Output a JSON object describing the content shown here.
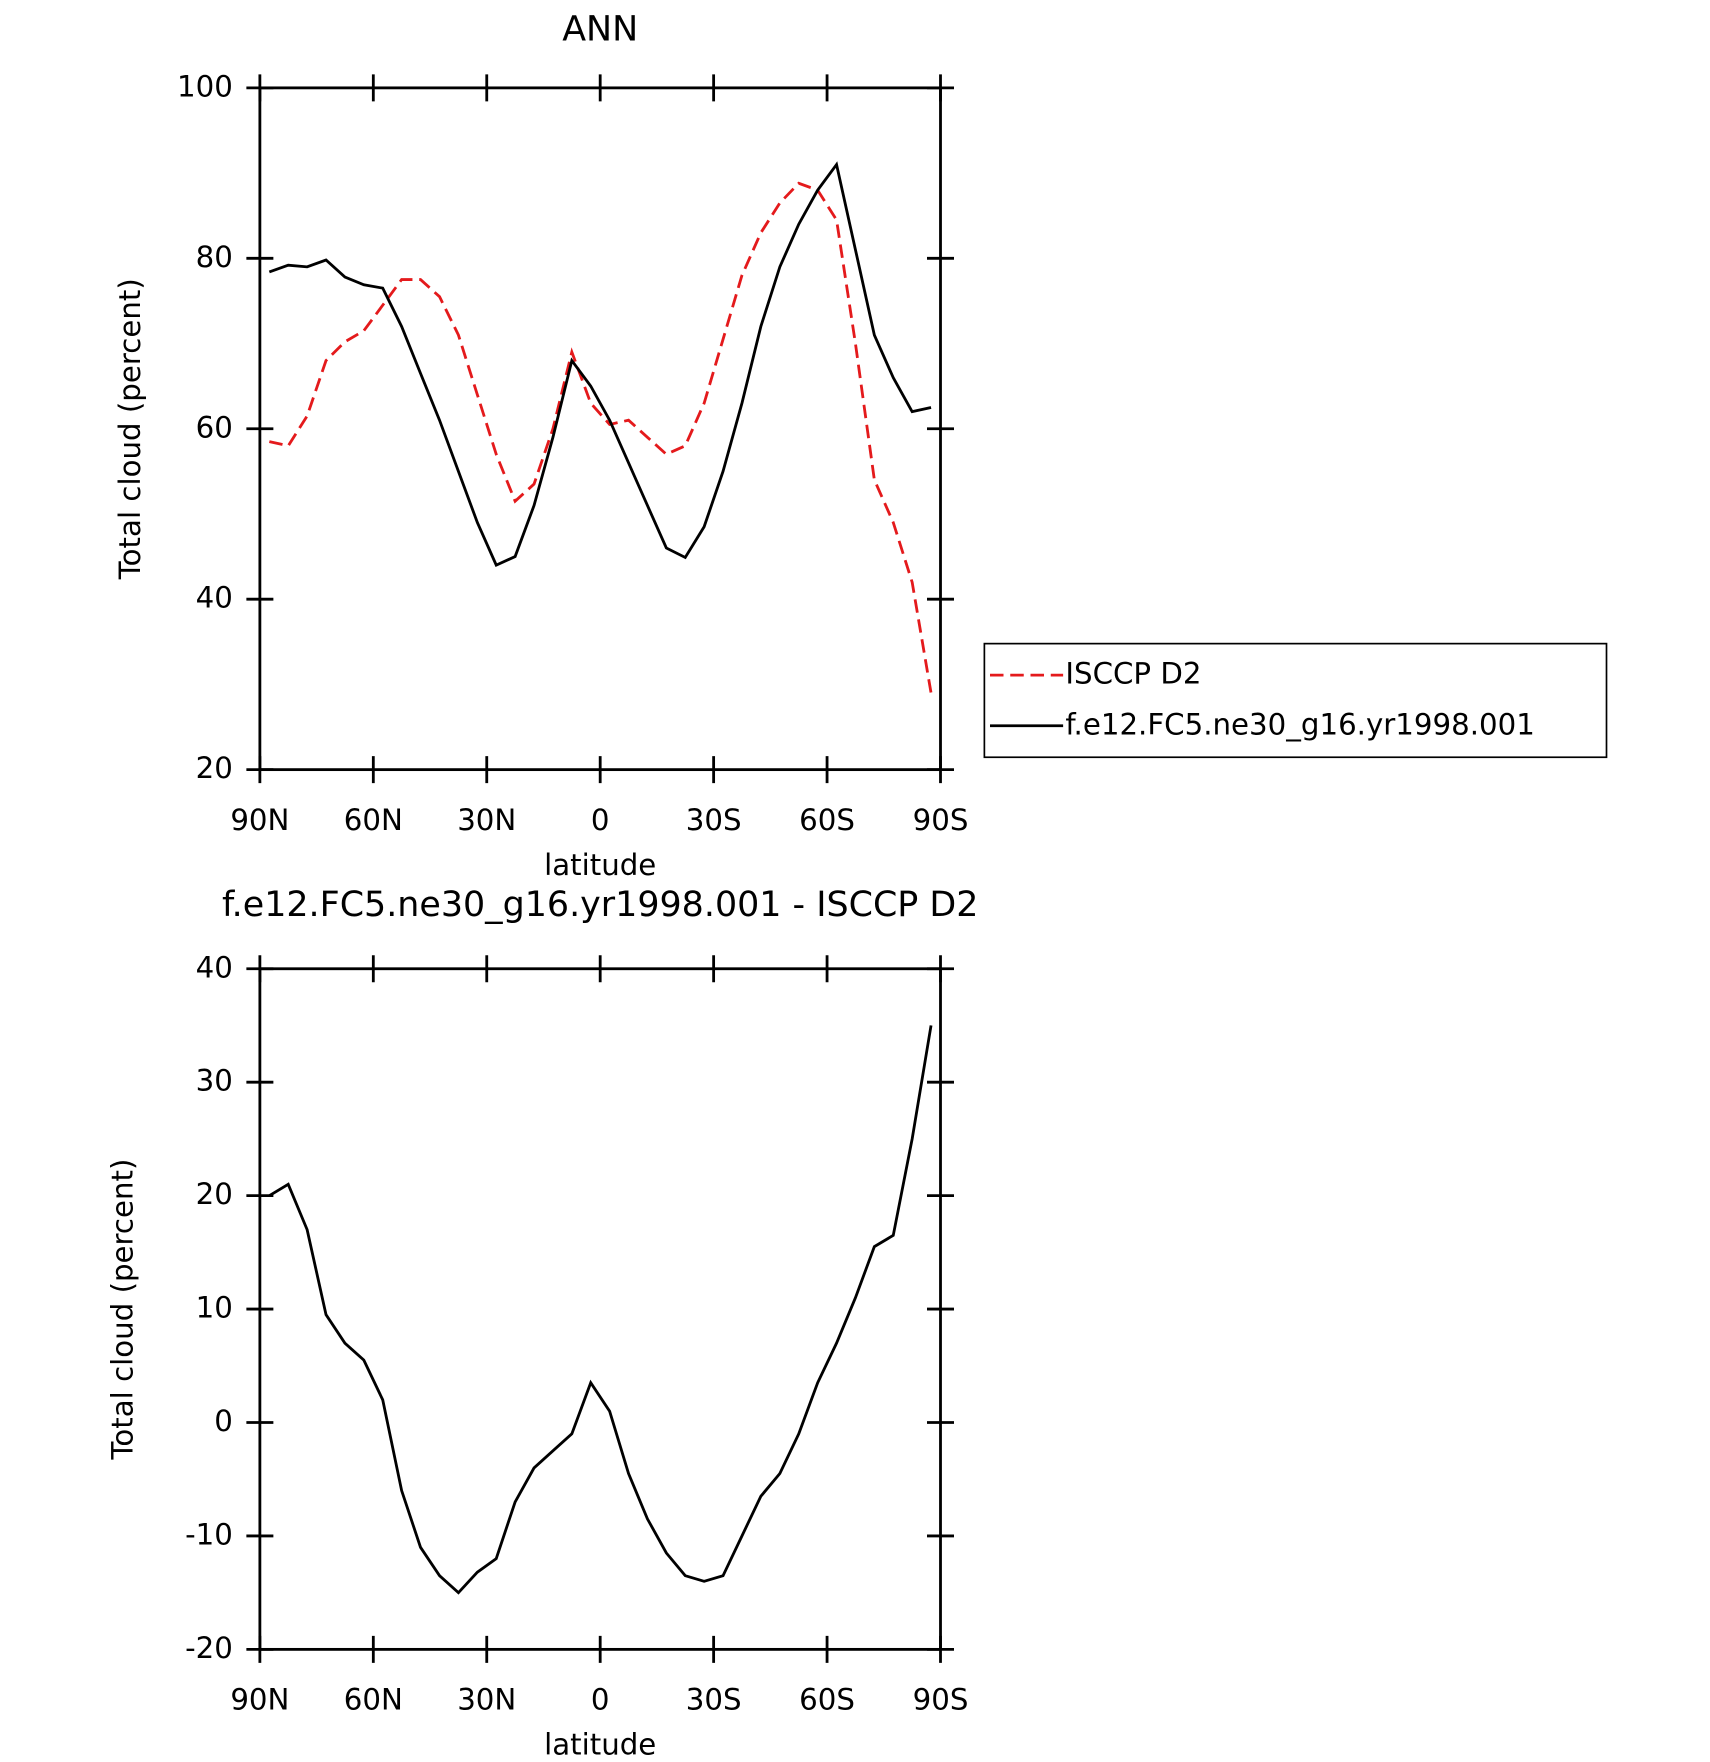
{
  "chart_data": [
    {
      "type": "line",
      "title": "ANN",
      "xlabel": "latitude",
      "ylabel": "Total cloud (percent)",
      "x": [
        87.5,
        82.5,
        77.5,
        72.5,
        67.5,
        62.5,
        57.5,
        52.5,
        47.5,
        42.5,
        37.5,
        32.5,
        27.5,
        22.5,
        17.5,
        12.5,
        7.5,
        2.5,
        -2.5,
        -7.5,
        -12.5,
        -17.5,
        -22.5,
        -27.5,
        -32.5,
        -37.5,
        -42.5,
        -47.5,
        -52.5,
        -57.5,
        -62.5,
        -67.5,
        -72.5,
        -77.5,
        -82.5,
        -87.5
      ],
      "series": [
        {
          "name": "ISCCP D2",
          "color": "#e41a1c",
          "dashed": true,
          "values": [
            58.5,
            58,
            61.5,
            68,
            70.2,
            71.5,
            74.5,
            77.5,
            77.5,
            75.5,
            71,
            64,
            57,
            51.5,
            53.5,
            60,
            69,
            63,
            60.5,
            61,
            59,
            57,
            58,
            63,
            70.5,
            78,
            83,
            86.5,
            88.8,
            88,
            84.5,
            70,
            54,
            49,
            42,
            29
          ]
        },
        {
          "name": "f.e12.FC5.ne30_g16.yr1998.001",
          "color": "#000000",
          "dashed": false,
          "values": [
            78.4,
            79.2,
            79,
            79.8,
            77.8,
            76.9,
            76.5,
            72,
            66.5,
            61,
            55,
            49,
            44,
            45,
            51,
            59,
            68,
            65,
            61,
            56,
            51,
            46,
            44.9,
            48.5,
            55,
            63,
            72,
            79,
            84,
            88,
            91,
            81,
            71,
            66,
            62,
            62.5
          ]
        }
      ],
      "xlim": [
        90,
        -90
      ],
      "xticks": [
        {
          "value": 90,
          "label": "90N"
        },
        {
          "value": 60,
          "label": "60N"
        },
        {
          "value": 30,
          "label": "30N"
        },
        0,
        {
          "value": -30,
          "label": "30S"
        },
        {
          "value": -60,
          "label": "60S"
        },
        {
          "value": -90,
          "label": "90S"
        }
      ],
      "ylim": [
        20,
        100
      ],
      "yticks": [
        20,
        40,
        60,
        80,
        100
      ],
      "legend": "right"
    },
    {
      "type": "line",
      "title": "f.e12.FC5.ne30_g16.yr1998.001 - ISCCP D2",
      "xlabel": "latitude",
      "ylabel": "Total cloud (percent)",
      "x": [
        87.5,
        82.5,
        77.5,
        72.5,
        67.5,
        62.5,
        57.5,
        52.5,
        47.5,
        42.5,
        37.5,
        32.5,
        27.5,
        22.5,
        17.5,
        12.5,
        7.5,
        2.5,
        -2.5,
        -7.5,
        -12.5,
        -17.5,
        -22.5,
        -27.5,
        -32.5,
        -37.5,
        -42.5,
        -47.5,
        -52.5,
        -57.5,
        -62.5,
        -67.5,
        -72.5,
        -77.5,
        -82.5,
        -87.5
      ],
      "values": [
        20,
        21,
        17,
        9.5,
        7,
        5.5,
        2,
        -6,
        -11,
        -13.5,
        -15,
        -13.2,
        -12,
        -7,
        -4,
        -2.5,
        -1,
        3.5,
        1,
        -4.5,
        -8.5,
        -11.5,
        -13.5,
        -14,
        -13.5,
        -10,
        -6.5,
        -4.5,
        -1,
        3.5,
        7,
        11,
        15.5,
        16.5,
        25,
        35
      ],
      "color": "#000000",
      "xlim": [
        90,
        -90
      ],
      "xticks": [
        {
          "value": 90,
          "label": "90N"
        },
        {
          "value": 60,
          "label": "60N"
        },
        {
          "value": 30,
          "label": "30N"
        },
        0,
        {
          "value": -30,
          "label": "30S"
        },
        {
          "value": -60,
          "label": "60S"
        },
        {
          "value": -90,
          "label": "90S"
        }
      ],
      "ylim": [
        -20,
        40
      ],
      "yticks": [
        -20,
        -10,
        0,
        10,
        20,
        30,
        40
      ]
    }
  ]
}
